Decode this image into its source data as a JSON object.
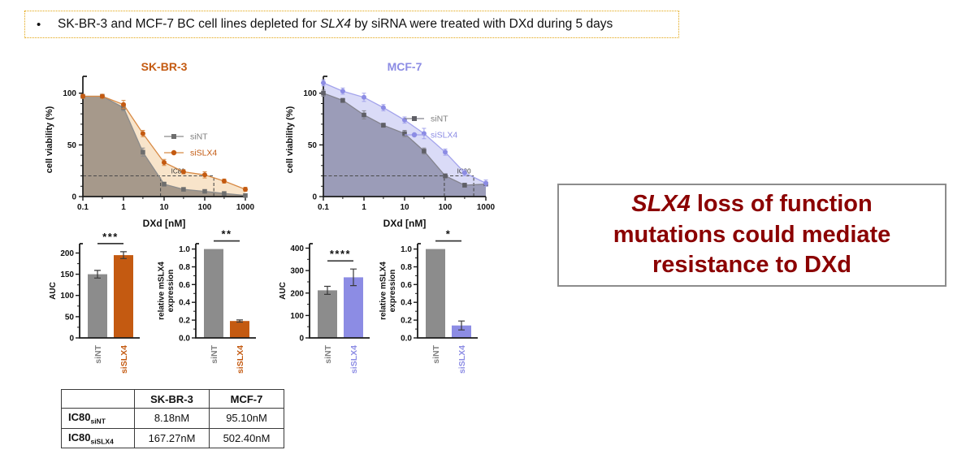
{
  "bullet": {
    "marker": "•",
    "pre": "SK-BR-3 and MCF-7 BC cell lines depleted for ",
    "italic": "SLX4",
    "post": " by siRNA were treated with DXd during 5 days"
  },
  "conclusion": {
    "line1_italic": "SLX4",
    "line1_rest": " loss of function",
    "line2": "mutations could mediate",
    "line3": "resistance to DXd",
    "text_color": "#8B0000"
  },
  "table": {
    "headers": [
      "",
      "SK-BR-3",
      "MCF-7"
    ],
    "rows": [
      {
        "label_base": "IC80",
        "label_sub": "siNT",
        "skbr3": "8.18nM",
        "mcf7": "95.10nM"
      },
      {
        "label_base": "IC80",
        "label_sub": "siSLX4",
        "skbr3": "167.27nM",
        "mcf7": "502.40nM"
      }
    ]
  },
  "chart_data": [
    {
      "id": "skbr3_curve",
      "type": "line",
      "title": "SK-BR-3",
      "title_color": "#C45A11",
      "xlabel": "DXd [nM]",
      "ylabel": "cell viability (%)",
      "xscale": "log",
      "xlim": [
        0.1,
        1000
      ],
      "ylim": [
        0,
        110
      ],
      "x": [
        0.1,
        0.3,
        1,
        3,
        10,
        30,
        100,
        300,
        1000
      ],
      "xtick_vals": [
        0.1,
        1,
        10,
        100,
        1000
      ],
      "xtick_labels": [
        "0.1",
        "1",
        "10",
        "100",
        "1000"
      ],
      "yticks": [
        0,
        50,
        100
      ],
      "legend_y": 66,
      "series": [
        {
          "name": "siNT",
          "marker": "square",
          "color": "#6e6e6e",
          "line_color": "#8c8c8c",
          "fill": "#a6998b",
          "values": [
            97,
            97,
            86,
            43,
            12,
            7,
            5,
            3,
            1
          ],
          "errors": [
            2,
            2,
            3,
            4,
            2,
            1,
            1,
            1,
            1
          ]
        },
        {
          "name": "siSLX4",
          "marker": "circle",
          "color": "#C45A11",
          "line_color": "#d88a45",
          "fill": "#f8e4ca",
          "values": [
            97,
            97,
            89,
            61,
            33,
            24,
            21,
            15,
            7
          ],
          "errors": [
            2,
            2,
            4,
            3,
            3,
            2,
            3,
            2,
            2
          ]
        }
      ],
      "ic80": {
        "y": 20,
        "x1": 8.18,
        "x2": 167.27,
        "label": "IC80",
        "label_x": 22
      }
    },
    {
      "id": "mcf7_curve",
      "type": "line",
      "title": "MCF-7",
      "title_color": "#8C8CE4",
      "xlabel": "DXd [nM]",
      "ylabel": "cell viability (%)",
      "xscale": "log",
      "xlim": [
        0.1,
        1000
      ],
      "ylim": [
        0,
        110
      ],
      "x": [
        0.1,
        0.3,
        1,
        3,
        10,
        30,
        100,
        300,
        1000
      ],
      "xtick_vals": [
        0.1,
        1,
        10,
        100,
        1000
      ],
      "xtick_labels": [
        "0.1",
        "1",
        "10",
        "100",
        "1000"
      ],
      "yticks": [
        0,
        50,
        100
      ],
      "legend_y": 44,
      "series": [
        {
          "name": "siNT",
          "marker": "square",
          "color": "#5f5f66",
          "line_color": "#84848e",
          "fill": "#9b9cb8",
          "values": [
            100,
            93,
            79,
            69,
            61,
            44,
            20,
            11,
            12
          ],
          "errors": [
            3,
            2,
            4,
            2,
            3,
            3,
            2,
            2,
            2
          ]
        },
        {
          "name": "siSLX4",
          "marker": "circle",
          "color": "#8C8CE4",
          "line_color": "#a3a3ec",
          "fill": "#dadbf7",
          "values": [
            110,
            102,
            96,
            86,
            74,
            61,
            43,
            23,
            13
          ],
          "errors": [
            3,
            3,
            4,
            3,
            3,
            5,
            3,
            3,
            3
          ]
        }
      ],
      "ic80": {
        "y": 20,
        "x1": 95.1,
        "x2": 502.4,
        "label": "IC80",
        "label_x": 290
      }
    },
    {
      "id": "skbr3_auc",
      "type": "bar",
      "ylabel_lines": [
        "AUC"
      ],
      "categories": [
        "siNT",
        "siSLX4"
      ],
      "values": [
        150,
        195
      ],
      "errors": [
        9,
        8
      ],
      "bar_colors": [
        "#8c8c8c",
        "#C45A11"
      ],
      "cat_colors": [
        "#7f7f7f",
        "#C45A11"
      ],
      "ytick_vals": [
        0,
        50,
        100,
        150,
        200
      ],
      "ytick_labels": [
        "0",
        "50",
        "100",
        "150",
        "200"
      ],
      "scale_max": 222,
      "yminor_step": 25,
      "sig": "***"
    },
    {
      "id": "skbr3_expr",
      "type": "bar",
      "ylabel_lines": [
        "relative mSLX4",
        "expression"
      ],
      "categories": [
        "siNT",
        "siSLX4"
      ],
      "values": [
        1.0,
        0.19
      ],
      "errors": [
        0,
        0.012
      ],
      "bar_colors": [
        "#8c8c8c",
        "#C45A11"
      ],
      "cat_colors": [
        "#7f7f7f",
        "#C45A11"
      ],
      "ytick_vals": [
        0,
        0.2,
        0.4,
        0.6,
        0.8,
        1.0
      ],
      "ytick_labels": [
        "0.0",
        "0.2",
        "0.4",
        "0.6",
        "0.8",
        "1.0"
      ],
      "scale_max": 1.06,
      "yminor_step": 0.1,
      "sig": "**"
    },
    {
      "id": "mcf7_auc",
      "type": "bar",
      "ylabel_lines": [
        "AUC"
      ],
      "categories": [
        "siNT",
        "siSLX4"
      ],
      "values": [
        212,
        270
      ],
      "errors": [
        18,
        37
      ],
      "bar_colors": [
        "#8c8c8c",
        "#8C8CE4"
      ],
      "cat_colors": [
        "#7f7f7f",
        "#8C8CE4"
      ],
      "ytick_vals": [
        0,
        100,
        200,
        300,
        400
      ],
      "ytick_labels": [
        "0",
        "100",
        "200",
        "300",
        "400"
      ],
      "scale_max": 420,
      "yminor_step": 50,
      "sig": "****"
    },
    {
      "id": "mcf7_expr",
      "type": "bar",
      "ylabel_lines": [
        "relative mSLX4",
        "expression"
      ],
      "categories": [
        "siNT",
        "siSLX4"
      ],
      "values": [
        1.0,
        0.14
      ],
      "errors": [
        0,
        0.05
      ],
      "bar_colors": [
        "#8c8c8c",
        "#8C8CE4"
      ],
      "cat_colors": [
        "#7f7f7f",
        "#8C8CE4"
      ],
      "ytick_vals": [
        0,
        0.2,
        0.4,
        0.6,
        0.8,
        1.0
      ],
      "ytick_labels": [
        "0.0",
        "0.2",
        "0.4",
        "0.6",
        "0.8",
        "1.0"
      ],
      "scale_max": 1.06,
      "yminor_step": 0.1,
      "sig": "*"
    }
  ]
}
